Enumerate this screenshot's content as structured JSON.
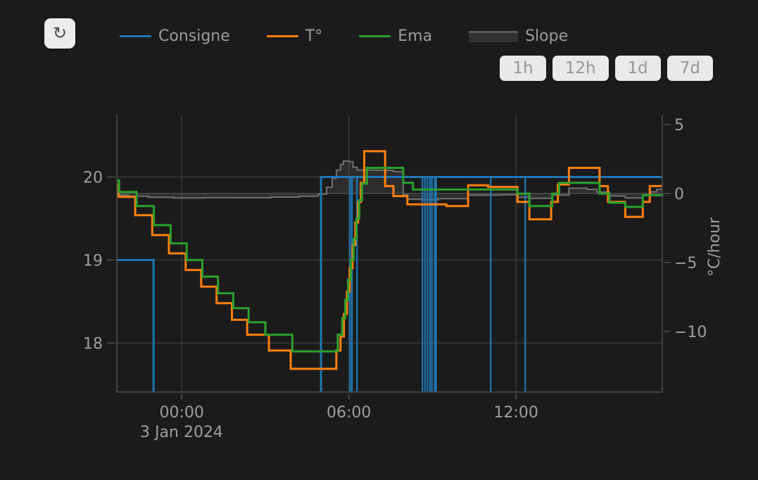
{
  "toolbar": {
    "refresh_icon": "↻"
  },
  "legend": {
    "items": [
      {
        "label": "Consigne",
        "color": "#1f77b4",
        "type": "line"
      },
      {
        "label": "T°",
        "color": "#ff7f0e",
        "type": "line"
      },
      {
        "label": "Ema",
        "color": "#2ca02c",
        "type": "line"
      },
      {
        "label": "Slope",
        "color": "#6f6f6f",
        "type": "area"
      }
    ]
  },
  "range_buttons": [
    {
      "label": "1h"
    },
    {
      "label": "12h"
    },
    {
      "label": "1d"
    },
    {
      "label": "7d"
    }
  ],
  "chart_data": {
    "type": "line",
    "subtype": "step-lines-dual-axis",
    "x_axis": {
      "range_hours": [
        -2.33,
        17.25
      ],
      "ticks": [
        {
          "t": 0,
          "label": "00:00"
        },
        {
          "t": 6,
          "label": "06:00"
        },
        {
          "t": 12,
          "label": "12:00"
        }
      ],
      "date_label": "3 Jan 2024"
    },
    "y_temp": {
      "range": [
        17.41,
        20.75
      ],
      "ticks": [
        20,
        19,
        18
      ]
    },
    "y_slope": {
      "range": [
        -14.4,
        5.71
      ],
      "ticks": [
        5,
        0,
        -5,
        -10
      ],
      "title": "°C/hour",
      "zeroline": 0
    },
    "grid": {
      "color": "#383838",
      "zeroline_color": "#474747",
      "axisline_color": "#4d4d4d",
      "tick_text_color": "#9e9e9e"
    },
    "series": [
      {
        "name": "Consigne",
        "color": "#1f77b4",
        "width": 3,
        "axis": "temp",
        "render": "setpoint-steps",
        "segments": [
          {
            "from": -2.33,
            "to": -1.01,
            "value": 19
          },
          {
            "from": 5.0,
            "to": 17.25,
            "value": 20
          }
        ],
        "spikes": [
          6.04,
          6.11,
          6.29,
          8.64,
          8.73,
          8.82,
          8.91,
          8.98,
          9.08,
          9.13,
          11.09,
          12.33
        ]
      },
      {
        "name": "T°",
        "color": "#ff7f0e",
        "width": 3,
        "axis": "temp",
        "render": "step",
        "points": [
          [
            -2.33,
            19.91
          ],
          [
            -2.27,
            19.76
          ],
          [
            -1.67,
            19.54
          ],
          [
            -1.06,
            19.3
          ],
          [
            -0.46,
            19.08
          ],
          [
            0.14,
            18.88
          ],
          [
            0.7,
            18.68
          ],
          [
            1.25,
            18.48
          ],
          [
            1.8,
            18.28
          ],
          [
            2.35,
            18.1
          ],
          [
            3.13,
            17.91
          ],
          [
            3.91,
            17.69
          ],
          [
            5.55,
            17.91
          ],
          [
            5.7,
            18.08
          ],
          [
            5.82,
            18.35
          ],
          [
            5.93,
            18.62
          ],
          [
            6.03,
            18.9
          ],
          [
            6.13,
            19.18
          ],
          [
            6.23,
            19.45
          ],
          [
            6.33,
            19.7
          ],
          [
            6.43,
            19.93
          ],
          [
            6.55,
            20.31
          ],
          [
            7.3,
            19.89
          ],
          [
            7.6,
            19.77
          ],
          [
            8.1,
            19.67
          ],
          [
            9.5,
            19.65
          ],
          [
            10.28,
            19.9
          ],
          [
            11.0,
            19.88
          ],
          [
            12.05,
            19.7
          ],
          [
            12.48,
            19.49
          ],
          [
            13.26,
            19.7
          ],
          [
            13.5,
            19.91
          ],
          [
            13.9,
            20.11
          ],
          [
            15.0,
            19.89
          ],
          [
            15.3,
            19.7
          ],
          [
            15.92,
            19.52
          ],
          [
            16.55,
            19.7
          ],
          [
            16.8,
            19.89
          ],
          [
            17.25,
            19.89
          ]
        ]
      },
      {
        "name": "Ema",
        "color": "#2ca02c",
        "width": 3,
        "axis": "temp",
        "render": "step",
        "points": [
          [
            -2.33,
            19.96
          ],
          [
            -2.25,
            19.82
          ],
          [
            -1.62,
            19.65
          ],
          [
            -1.0,
            19.42
          ],
          [
            -0.4,
            19.2
          ],
          [
            0.18,
            19.0
          ],
          [
            0.74,
            18.8
          ],
          [
            1.3,
            18.6
          ],
          [
            1.85,
            18.42
          ],
          [
            2.4,
            18.25
          ],
          [
            3.0,
            18.1
          ],
          [
            3.97,
            17.9
          ],
          [
            5.6,
            18.1
          ],
          [
            5.76,
            18.3
          ],
          [
            5.87,
            18.52
          ],
          [
            5.97,
            18.76
          ],
          [
            6.07,
            19.0
          ],
          [
            6.17,
            19.25
          ],
          [
            6.27,
            19.5
          ],
          [
            6.37,
            19.72
          ],
          [
            6.47,
            19.92
          ],
          [
            6.65,
            20.11
          ],
          [
            7.95,
            19.93
          ],
          [
            8.3,
            19.85
          ],
          [
            12.05,
            19.8
          ],
          [
            12.48,
            19.65
          ],
          [
            13.3,
            19.8
          ],
          [
            13.55,
            19.93
          ],
          [
            15.0,
            19.8
          ],
          [
            15.35,
            19.69
          ],
          [
            15.92,
            19.64
          ],
          [
            16.55,
            19.78
          ],
          [
            17.25,
            19.8
          ]
        ]
      },
      {
        "name": "Slope",
        "color": "#6f6f6f",
        "width": 2,
        "axis": "slope",
        "render": "step-area",
        "fill": "rgba(140,140,140,0.16)",
        "points": [
          [
            -2.33,
            -0.12
          ],
          [
            -1.9,
            -0.2
          ],
          [
            -1.2,
            -0.28
          ],
          [
            -0.3,
            -0.33
          ],
          [
            0.8,
            -0.3
          ],
          [
            2.0,
            -0.31
          ],
          [
            3.2,
            -0.26
          ],
          [
            4.2,
            -0.2
          ],
          [
            4.9,
            -0.05
          ],
          [
            5.2,
            0.45
          ],
          [
            5.4,
            1.1
          ],
          [
            5.55,
            1.7
          ],
          [
            5.7,
            2.1
          ],
          [
            5.8,
            2.35
          ],
          [
            6.0,
            2.3
          ],
          [
            6.15,
            1.9
          ],
          [
            6.3,
            1.7
          ],
          [
            7.0,
            1.68
          ],
          [
            7.6,
            1.58
          ],
          [
            7.95,
            -0.1
          ],
          [
            8.1,
            -0.42
          ],
          [
            8.6,
            -0.45
          ],
          [
            9.2,
            -0.38
          ],
          [
            10.28,
            -0.12
          ],
          [
            11.5,
            -0.1
          ],
          [
            12.05,
            -0.28
          ],
          [
            12.48,
            -0.35
          ],
          [
            13.3,
            -0.12
          ],
          [
            13.9,
            0.38
          ],
          [
            14.55,
            0.3
          ],
          [
            14.9,
            0.1
          ],
          [
            15.35,
            -0.18
          ],
          [
            15.92,
            -0.33
          ],
          [
            16.55,
            -0.1
          ],
          [
            16.85,
            0.12
          ],
          [
            17.05,
            0.3
          ],
          [
            17.25,
            0.3
          ]
        ]
      }
    ]
  }
}
